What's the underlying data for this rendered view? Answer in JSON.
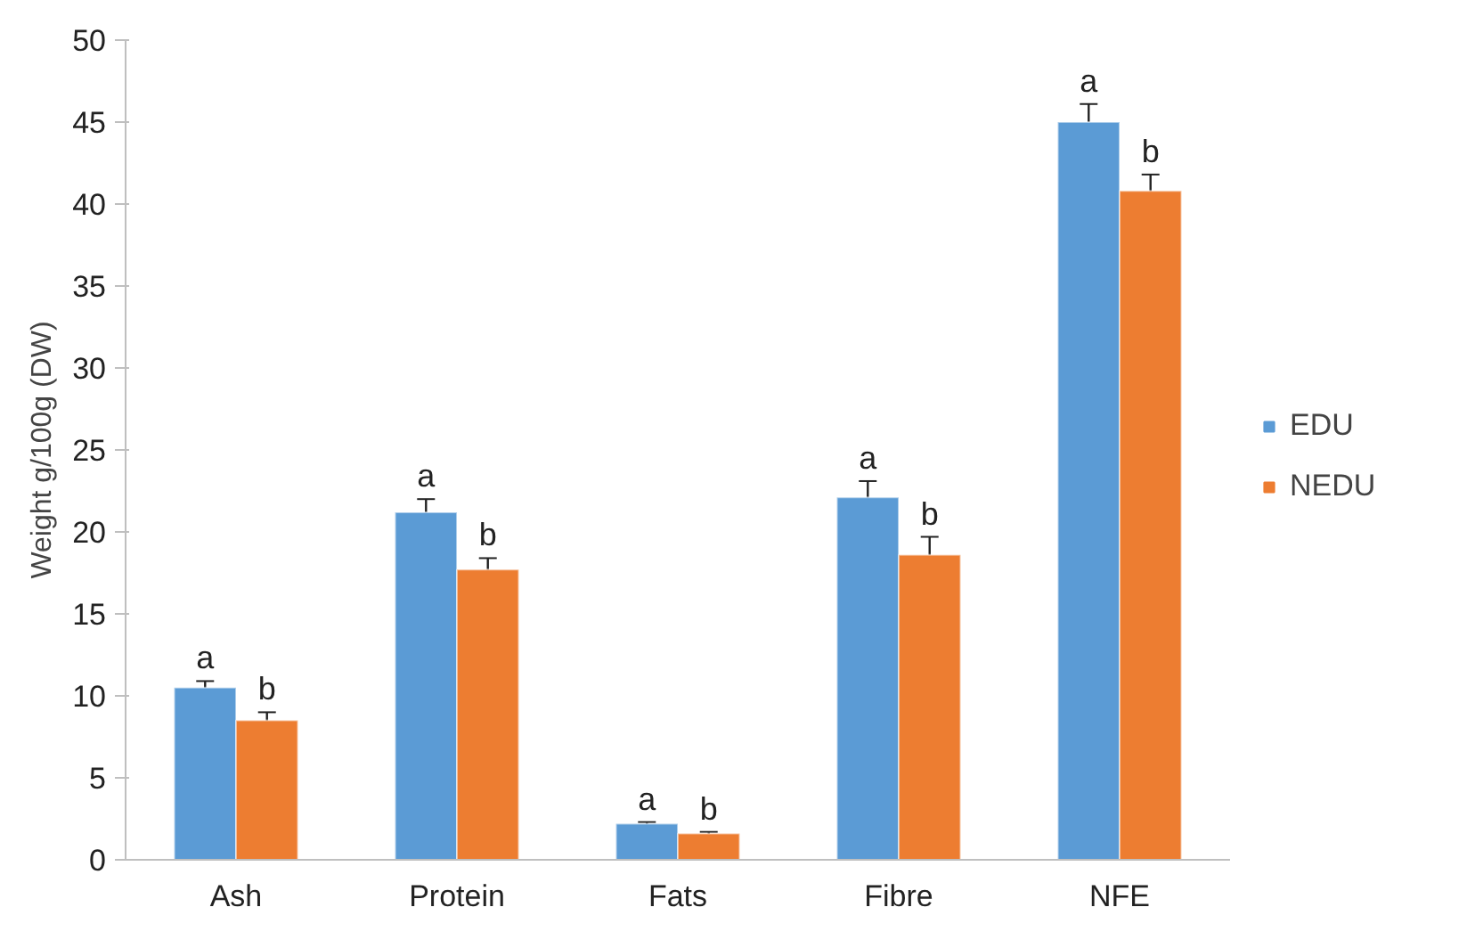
{
  "chart_data": {
    "type": "bar",
    "ylabel": "Weight g/100g (DW)",
    "categories": [
      "Ash",
      "Protein",
      "Fats",
      "Fibre",
      "NFE"
    ],
    "series": [
      {
        "name": "EDU",
        "color": "#5b9bd5",
        "values": [
          10.5,
          21.2,
          2.2,
          22.1,
          45.0
        ],
        "errors": [
          0.4,
          0.8,
          0.1,
          1.0,
          1.1
        ]
      },
      {
        "name": "NEDU",
        "color": "#ed7d31",
        "values": [
          8.5,
          17.7,
          1.6,
          18.6,
          40.8
        ],
        "errors": [
          0.5,
          0.7,
          0.1,
          1.1,
          1.0
        ]
      }
    ],
    "ylim": [
      0,
      50
    ],
    "yticks": [
      0,
      5,
      10,
      15,
      20,
      25,
      30,
      35,
      40,
      45,
      50
    ],
    "grid": false,
    "legend": "right",
    "annotations": [
      {
        "text": "a",
        "x": "Ash",
        "y": 10.5
      },
      {
        "text": "b",
        "x": "Ash",
        "y": 8.5
      },
      {
        "text": "a",
        "x": "Protein",
        "y": 21.2
      },
      {
        "text": "b",
        "x": "Protein",
        "y": 17.7
      },
      {
        "text": "a",
        "x": "Fats",
        "y": 2.2
      },
      {
        "text": "b",
        "x": "Fats",
        "y": 1.6
      },
      {
        "text": "a",
        "x": "Fibre",
        "y": 22.1
      },
      {
        "text": "b",
        "x": "Fibre",
        "y": 18.6
      },
      {
        "text": "a",
        "x": "NFE",
        "y": 45.0
      },
      {
        "text": "b",
        "x": "NFE",
        "y": 40.8
      }
    ]
  }
}
